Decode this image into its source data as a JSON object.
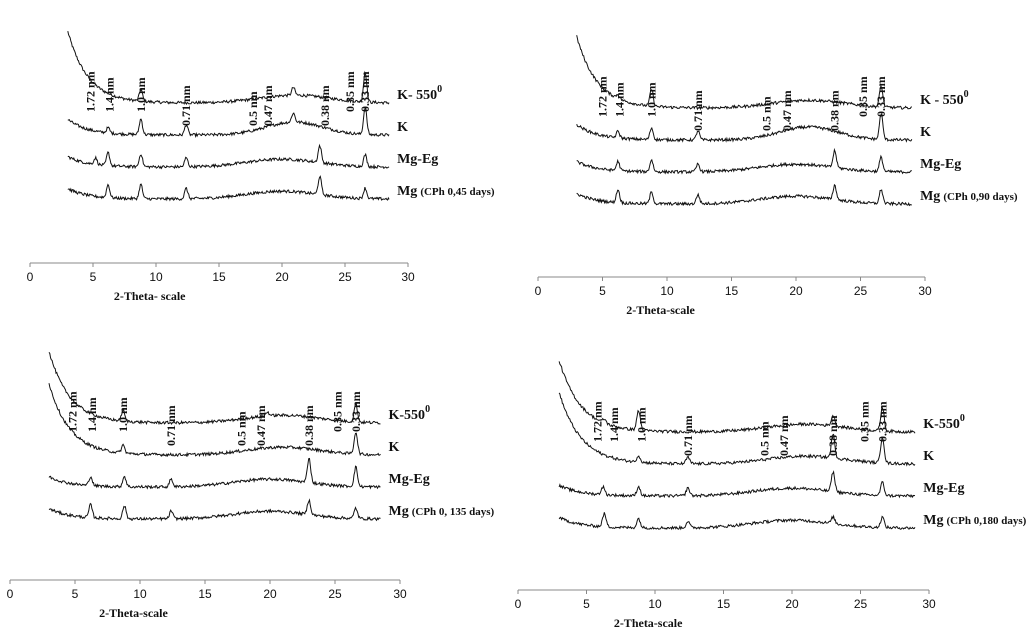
{
  "chart_data": [
    {
      "type": "line",
      "panel": "top-left",
      "xlabel": "2-Theta- scale",
      "xlim": [
        0,
        30
      ],
      "x_ticks": [
        "0",
        "5",
        "10",
        "15",
        "20",
        "25",
        "30"
      ],
      "x_start": 3,
      "x_end": 28.5,
      "peak_labels": [
        {
          "x": 4.8,
          "label": "1.72 nm"
        },
        {
          "x": 6.3,
          "label": "1.4 nm"
        },
        {
          "x": 8.8,
          "label": "1.0 nm"
        },
        {
          "x": 12.4,
          "label": "0.71 nm"
        },
        {
          "x": 17.7,
          "label": "0.5 nm"
        },
        {
          "x": 18.9,
          "label": "0.47 nm"
        },
        {
          "x": 23.4,
          "label": "0.38 nm"
        },
        {
          "x": 25.4,
          "label": "0.35 nm"
        },
        {
          "x": 26.6,
          "label": "0.33 nm"
        }
      ],
      "series": [
        {
          "name": "K- 550",
          "superscript": "0",
          "paren": "",
          "baseline": 1.0,
          "background": "high",
          "peaks": [
            {
              "x": 8.8,
              "h": 0.9
            },
            {
              "x": 20.9,
              "h": 0.6
            },
            {
              "x": 26.6,
              "h": 2.3
            }
          ]
        },
        {
          "name": "K",
          "superscript": "",
          "paren": "",
          "baseline": 0.0,
          "background": "hump",
          "peaks": [
            {
              "x": 6.2,
              "h": 0.4
            },
            {
              "x": 8.8,
              "h": 1.2
            },
            {
              "x": 12.4,
              "h": 0.8
            },
            {
              "x": 20.9,
              "h": 0.7
            },
            {
              "x": 26.6,
              "h": 2.1
            }
          ]
        },
        {
          "name": "Mg-Eg",
          "superscript": "",
          "paren": "",
          "baseline": -1.0,
          "background": "flat",
          "peaks": [
            {
              "x": 5.2,
              "h": 0.5
            },
            {
              "x": 6.2,
              "h": 1.0
            },
            {
              "x": 8.8,
              "h": 1.0
            },
            {
              "x": 12.4,
              "h": 0.7
            },
            {
              "x": 23.0,
              "h": 1.3
            },
            {
              "x": 26.6,
              "h": 0.9
            }
          ]
        },
        {
          "name": "Mg",
          "superscript": "",
          "paren": "(CPh 0,45 days)",
          "baseline": -2.0,
          "background": "flat",
          "peaks": [
            {
              "x": 6.2,
              "h": 1.0
            },
            {
              "x": 8.8,
              "h": 1.1
            },
            {
              "x": 12.4,
              "h": 0.8
            },
            {
              "x": 23.0,
              "h": 1.4
            },
            {
              "x": 26.6,
              "h": 0.8
            }
          ]
        }
      ]
    },
    {
      "type": "line",
      "panel": "top-right",
      "xlabel": "2-Theta-scale",
      "xlim": [
        0,
        30
      ],
      "x_ticks": [
        "0",
        "5",
        "10",
        "15",
        "20",
        "25",
        "30"
      ],
      "x_start": 3,
      "x_end": 29,
      "peak_labels": [
        {
          "x": 5.0,
          "label": "1.72 nm"
        },
        {
          "x": 6.3,
          "label": "1.4 nm"
        },
        {
          "x": 8.8,
          "label": "1.0 nm"
        },
        {
          "x": 12.4,
          "label": "0.71 nm"
        },
        {
          "x": 17.7,
          "label": "0.5 nm"
        },
        {
          "x": 19.3,
          "label": "0.47 nm"
        },
        {
          "x": 23.0,
          "label": "0.38 nm"
        },
        {
          "x": 25.2,
          "label": "0.35 nm"
        },
        {
          "x": 26.6,
          "label": "0.33 nm"
        }
      ],
      "series": [
        {
          "name": "K - 550",
          "superscript": "0",
          "paren": "",
          "baseline": 1.0,
          "background": "high",
          "peaks": [
            {
              "x": 6.2,
              "h": 0.3
            },
            {
              "x": 8.8,
              "h": 1.3
            },
            {
              "x": 26.6,
              "h": 1.6
            }
          ]
        },
        {
          "name": "K",
          "superscript": "",
          "paren": "",
          "baseline": 0.0,
          "background": "hump",
          "peaks": [
            {
              "x": 6.2,
              "h": 0.5
            },
            {
              "x": 8.8,
              "h": 0.9
            },
            {
              "x": 12.4,
              "h": 0.7
            },
            {
              "x": 26.6,
              "h": 2.0
            }
          ]
        },
        {
          "name": "Mg-Eg",
          "superscript": "",
          "paren": "",
          "baseline": -1.0,
          "background": "flat",
          "peaks": [
            {
              "x": 6.2,
              "h": 0.7
            },
            {
              "x": 8.8,
              "h": 0.9
            },
            {
              "x": 12.4,
              "h": 0.6
            },
            {
              "x": 23.0,
              "h": 1.3
            },
            {
              "x": 26.6,
              "h": 1.1
            }
          ]
        },
        {
          "name": "Mg",
          "superscript": "",
          "paren": "(CPh 0,90 days)",
          "baseline": -2.0,
          "background": "flat",
          "peaks": [
            {
              "x": 6.2,
              "h": 1.0
            },
            {
              "x": 8.8,
              "h": 0.9
            },
            {
              "x": 12.4,
              "h": 0.7
            },
            {
              "x": 23.0,
              "h": 1.1
            },
            {
              "x": 26.6,
              "h": 1.1
            }
          ]
        }
      ]
    },
    {
      "type": "line",
      "panel": "bottom-left",
      "xlabel": "2-Theta-scale",
      "xlim": [
        0,
        30
      ],
      "x_ticks": [
        "0",
        "5",
        "10",
        "15",
        "20",
        "25",
        "30"
      ],
      "x_start": 3,
      "x_end": 28.5,
      "peak_labels": [
        {
          "x": 4.8,
          "label": "1.72 nm"
        },
        {
          "x": 6.3,
          "label": "1.4 nm"
        },
        {
          "x": 8.7,
          "label": "1.0 nm"
        },
        {
          "x": 12.4,
          "label": "0.71 nm"
        },
        {
          "x": 17.8,
          "label": "0.5 nm"
        },
        {
          "x": 19.3,
          "label": "0.47 nm"
        },
        {
          "x": 23.0,
          "label": "0.38 nm"
        },
        {
          "x": 25.2,
          "label": "0.35 nm"
        },
        {
          "x": 26.6,
          "label": "0.33 nm"
        }
      ],
      "series": [
        {
          "name": "K-550",
          "superscript": "0",
          "paren": "",
          "baseline": 1.0,
          "background": "high",
          "peaks": [
            {
              "x": 8.7,
              "h": 0.8
            },
            {
              "x": 19.8,
              "h": 0.3
            },
            {
              "x": 26.6,
              "h": 1.4
            }
          ]
        },
        {
          "name": "K",
          "superscript": "",
          "paren": "",
          "baseline": 0.0,
          "background": "high",
          "peaks": [
            {
              "x": 8.7,
              "h": 0.6
            },
            {
              "x": 26.6,
              "h": 1.7
            }
          ]
        },
        {
          "name": "Mg-Eg",
          "superscript": "",
          "paren": "",
          "baseline": -1.0,
          "background": "flat",
          "peaks": [
            {
              "x": 6.2,
              "h": 0.7
            },
            {
              "x": 8.8,
              "h": 0.8
            },
            {
              "x": 12.4,
              "h": 0.6
            },
            {
              "x": 23.0,
              "h": 1.9
            },
            {
              "x": 26.6,
              "h": 1.5
            }
          ]
        },
        {
          "name": "Mg",
          "superscript": "",
          "paren": "(CPh 0, 135 days)",
          "baseline": -2.0,
          "background": "flat",
          "peaks": [
            {
              "x": 6.2,
              "h": 1.0
            },
            {
              "x": 8.8,
              "h": 1.0
            },
            {
              "x": 12.4,
              "h": 0.6
            },
            {
              "x": 23.0,
              "h": 1.1
            },
            {
              "x": 26.6,
              "h": 0.8
            }
          ]
        }
      ]
    },
    {
      "type": "line",
      "panel": "bottom-right",
      "xlabel": "2-Theta-scale",
      "xlim": [
        0,
        30
      ],
      "x_ticks": [
        "0",
        "5",
        "10",
        "15",
        "20",
        "25",
        "30"
      ],
      "x_start": 3,
      "x_end": 29,
      "peak_labels": [
        {
          "x": 5.8,
          "label": "1.72 nm"
        },
        {
          "x": 7.0,
          "label": "1.4 nm"
        },
        {
          "x": 9.0,
          "label": "1.0 nm"
        },
        {
          "x": 12.4,
          "label": "0.71 nm"
        },
        {
          "x": 18.0,
          "label": "0.5 nm"
        },
        {
          "x": 19.4,
          "label": "0.47 nm"
        },
        {
          "x": 23.0,
          "label": "0.38 nm"
        },
        {
          "x": 25.3,
          "label": "0.35 nm"
        },
        {
          "x": 26.6,
          "label": "0.33 nm"
        }
      ],
      "series": [
        {
          "name": "K-550",
          "superscript": "0",
          "paren": "",
          "baseline": 1.0,
          "background": "high",
          "peaks": [
            {
              "x": 6.3,
              "h": 0.3
            },
            {
              "x": 8.8,
              "h": 1.5
            },
            {
              "x": 23.0,
              "h": 0.8
            },
            {
              "x": 26.6,
              "h": 1.8
            }
          ]
        },
        {
          "name": "K",
          "superscript": "",
          "paren": "",
          "baseline": 0.0,
          "background": "high",
          "peaks": [
            {
              "x": 8.8,
              "h": 0.5
            },
            {
              "x": 12.4,
              "h": 0.5
            },
            {
              "x": 23.0,
              "h": 1.8
            },
            {
              "x": 26.6,
              "h": 2.0
            }
          ]
        },
        {
          "name": "Mg-Eg",
          "superscript": "",
          "paren": "",
          "baseline": -1.0,
          "background": "flat",
          "peaks": [
            {
              "x": 6.2,
              "h": 0.6
            },
            {
              "x": 8.8,
              "h": 0.7
            },
            {
              "x": 12.4,
              "h": 0.6
            },
            {
              "x": 23.0,
              "h": 1.5
            },
            {
              "x": 26.6,
              "h": 1.0
            }
          ]
        },
        {
          "name": "Mg",
          "superscript": "",
          "paren": "(CPh 0,180 days)",
          "baseline": -2.0,
          "background": "flat",
          "peaks": [
            {
              "x": 6.3,
              "h": 1.0
            },
            {
              "x": 8.8,
              "h": 0.7
            },
            {
              "x": 12.4,
              "h": 0.5
            },
            {
              "x": 23.0,
              "h": 0.5
            },
            {
              "x": 26.6,
              "h": 0.8
            }
          ]
        }
      ]
    }
  ]
}
